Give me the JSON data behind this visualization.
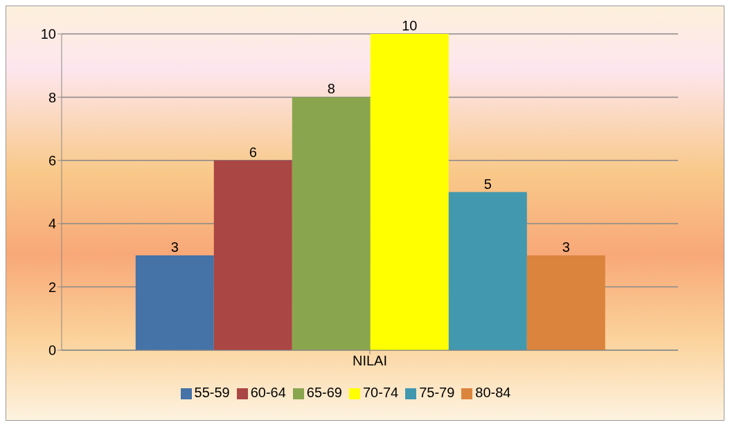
{
  "chart_data": {
    "type": "bar",
    "categories": [
      "NILAI"
    ],
    "series": [
      {
        "name": "55-59",
        "color": "#4572a7",
        "values": [
          3
        ]
      },
      {
        "name": "60-64",
        "color": "#aa4643",
        "values": [
          6
        ]
      },
      {
        "name": "65-69",
        "color": "#89a54e",
        "values": [
          8
        ]
      },
      {
        "name": "70-74",
        "color": "#ffff00",
        "values": [
          10
        ]
      },
      {
        "name": "75-79",
        "color": "#4198af",
        "values": [
          5
        ]
      },
      {
        "name": "80-84",
        "color": "#db843d",
        "values": [
          3
        ]
      }
    ],
    "ylim": [
      0,
      10
    ],
    "yticks": [
      0,
      2,
      4,
      6,
      8,
      10
    ],
    "grid": "y",
    "legend": "bottom",
    "data_labels": true
  }
}
